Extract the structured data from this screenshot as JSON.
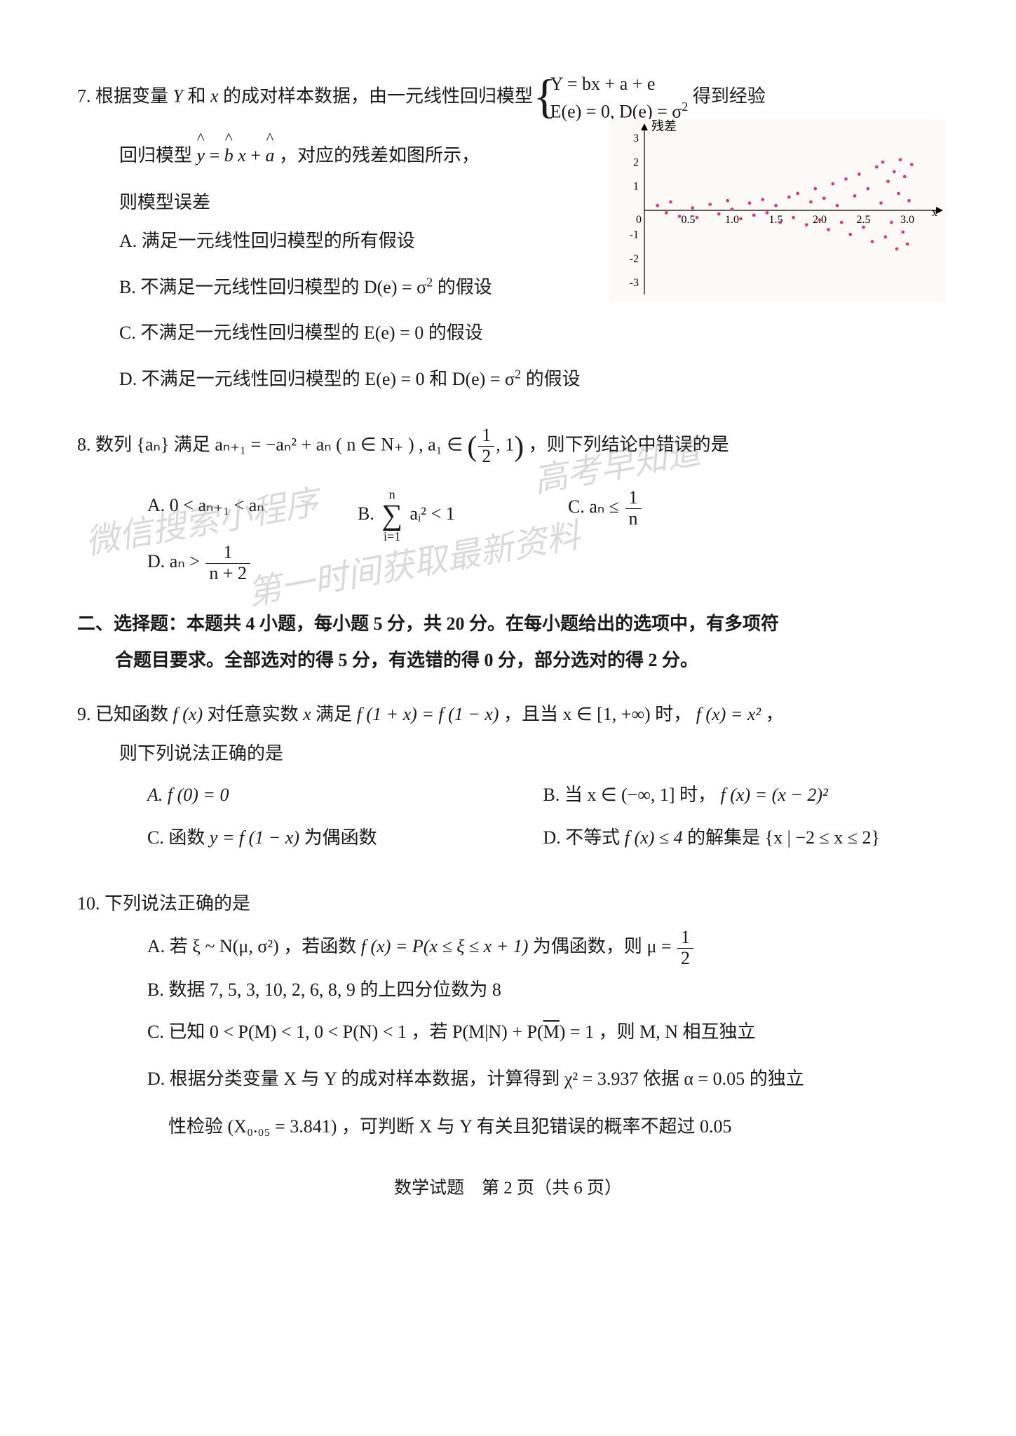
{
  "q7": {
    "num": "7.",
    "stem_a": "根据变量 ",
    "stem_b": " 和 ",
    "stem_c": " 的成对样本数据，由一元线性回归模型 ",
    "stem_d": " 得到经验",
    "sys_row1": "Y = bx + a + e",
    "sys_row2_a": "E(e) = 0, D(e) = σ",
    "stem2_a": "回归模型 ",
    "stem2_b": "，对应的残差如图所示，",
    "stem3": "则模型误差",
    "optA": "A. 满足一元线性回归模型的所有假设",
    "optB_a": "B. 不满足一元线性回归模型的 ",
    "optB_b": " 的假设",
    "optB_mid": "D(e) = σ",
    "optC_a": "C. 不满足一元线性回归模型的 ",
    "optC_b": " 的假设",
    "optC_mid": "E(e) = 0",
    "optD_a": "D. 不满足一元线性回归模型的 ",
    "optD_mid1": "E(e) = 0",
    "optD_and": " 和 ",
    "optD_mid2": "D(e) = σ",
    "optD_b": " 的假设",
    "plot_label": "残差",
    "x_axis_label": "x"
  },
  "q8": {
    "num": "8.",
    "stem_a": "数列 ",
    "stem_b": " 满足 ",
    "stem_c": "，则下列结论中错误的是",
    "seq_set": "{aₙ}",
    "rec": "aₙ₊₁ = −aₙ² + aₙ ( n ∈ N₊ ) , a₁ ∈",
    "interval_l": "1",
    "interval_l_den": "2",
    "interval_r": ", 1",
    "optA": "A. 0 < aₙ₊₁ < aₙ",
    "optB_pre": "B.",
    "optB_sum_top": "n",
    "optB_sum_bot": "i=1",
    "optB_body": "aᵢ² < 1",
    "optC_a": "C. aₙ ≤",
    "optC_num": "1",
    "optC_den": "n",
    "optD_a": "D. aₙ >",
    "optD_num": "1",
    "optD_den": "n + 2"
  },
  "section2": {
    "line1": "二、选择题：本题共 4 小题，每小题 5 分，共 20 分。在每小题给出的选项中，有多项符",
    "line2": "合题目要求。全部选对的得 5 分，有选错的得 0 分，部分选对的得 2 分。"
  },
  "q9": {
    "num": "9.",
    "stem_a": "已知函数 ",
    "stem_b": " 对任意实数 ",
    "stem_c": " 满足 ",
    "stem_d": "，且当 ",
    "stem_e": " 时，",
    "stem_f": "，",
    "fx": "f (x)",
    "xvar": "x",
    "eq1": "f (1 + x) = f (1 − x)",
    "dom1": "x ∈ [1, +∞)",
    "val1": "f (x) = x²",
    "stem2": "则下列说法正确的是",
    "optA": "A. f (0) = 0",
    "optB_a": "B. 当 ",
    "optB_dom": "x ∈ (−∞, 1]",
    "optB_mid": " 时，",
    "optB_val": "f (x) = (x − 2)²",
    "optC_a": "C. 函数 ",
    "optC_fn": "y = f (1 − x)",
    "optC_b": " 为偶函数",
    "optD_a": "D. 不等式 ",
    "optD_ineq": "f (x) ≤ 4",
    "optD_mid": " 的解集是 ",
    "optD_set": "{x | −2 ≤ x ≤ 2}"
  },
  "q10": {
    "num": "10.",
    "stem": "下列说法正确的是",
    "optA_a": "A. 若 ",
    "optA_dist": "ξ ~ N(μ, σ²)",
    "optA_b": "，若函数 ",
    "optA_fn": "f (x) = P(x ≤ ξ ≤ x + 1)",
    "optA_c": " 为偶函数，则 ",
    "optA_mu": "μ =",
    "optA_num": "1",
    "optA_den": "2",
    "optB": "B. 数据 7, 5, 3, 10, 2, 6, 8, 9 的上四分位数为 8",
    "optC_a": "C. 已知 ",
    "optC_p1": "0 < P(M) < 1,  0 < P(N) < 1",
    "optC_mid": "，若 ",
    "optC_eq_a": "P(M|N) + P(",
    "optC_eq_bar": "M",
    "optC_eq_b": ") = 1",
    "optC_tail": "，则 M, N 相互独立",
    "optD_a": "D. 根据分类变量 X 与 Y 的成对样本数据，计算得到 ",
    "optD_chi": "χ² = 3.937",
    "optD_mid": " 依据 ",
    "optD_alpha": "α = 0.05",
    "optD_tail1": " 的独立",
    "optD_line2_a": "性检验 ",
    "optD_crit": "(X₀.₀₅ = 3.841)",
    "optD_line2_b": "，可判断 X 与 Y 有关且犯错误的概率不超过 0.05"
  },
  "footer": "数学试题　第 2 页（共 6 页）",
  "watermarks": {
    "w1": "微信搜索小程序",
    "w2": "高考早知道",
    "w3": "第一时间获取最新资料"
  },
  "residual_plot": {
    "type": "scatter",
    "background_color": "#fbfaf6",
    "point_color": "#d63b8c",
    "point_radius": 2.4,
    "axis_color": "#000000",
    "xlim": [
      0,
      3.2
    ],
    "ylim": [
      -3.2,
      3.2
    ],
    "xticks": [
      0,
      0.5,
      1.0,
      1.5,
      2.0,
      2.5,
      3.0
    ],
    "xtick_labels": [
      "0",
      "0.5",
      "1.0",
      "1.5",
      "2.0",
      "2.5",
      "3.0"
    ],
    "yticks": [
      -3,
      -2,
      -1,
      0,
      1,
      2,
      3
    ],
    "ytick_labels": [
      "-3",
      "-2",
      "-1",
      "0",
      "1",
      "2",
      "3"
    ],
    "label_fontsize": 16,
    "points": [
      [
        0.15,
        0.2
      ],
      [
        0.25,
        -0.1
      ],
      [
        0.3,
        0.35
      ],
      [
        0.4,
        -0.25
      ],
      [
        0.55,
        0.1
      ],
      [
        0.6,
        -0.3
      ],
      [
        0.75,
        0.25
      ],
      [
        0.85,
        -0.15
      ],
      [
        0.95,
        0.4
      ],
      [
        1.0,
        0.05
      ],
      [
        1.1,
        -0.35
      ],
      [
        1.2,
        0.3
      ],
      [
        1.25,
        -0.2
      ],
      [
        1.35,
        0.45
      ],
      [
        1.4,
        -0.1
      ],
      [
        1.5,
        0.2
      ],
      [
        1.55,
        -0.5
      ],
      [
        1.65,
        0.55
      ],
      [
        1.7,
        -0.3
      ],
      [
        1.75,
        0.7
      ],
      [
        1.85,
        -0.6
      ],
      [
        1.9,
        0.35
      ],
      [
        1.95,
        0.9
      ],
      [
        2.0,
        -0.4
      ],
      [
        2.05,
        0.5
      ],
      [
        2.1,
        -0.8
      ],
      [
        2.15,
        1.1
      ],
      [
        2.2,
        0.2
      ],
      [
        2.25,
        -0.5
      ],
      [
        2.3,
        1.3
      ],
      [
        2.35,
        -1.0
      ],
      [
        2.4,
        0.6
      ],
      [
        2.45,
        1.5
      ],
      [
        2.5,
        -0.7
      ],
      [
        2.55,
        0.9
      ],
      [
        2.6,
        -1.3
      ],
      [
        2.65,
        1.8
      ],
      [
        2.7,
        0.3
      ],
      [
        2.72,
        2.0
      ],
      [
        2.75,
        -1.1
      ],
      [
        2.78,
        1.2
      ],
      [
        2.82,
        -0.5
      ],
      [
        2.85,
        1.6
      ],
      [
        2.88,
        -1.6
      ],
      [
        2.9,
        0.7
      ],
      [
        2.92,
        2.1
      ],
      [
        2.95,
        -0.9
      ],
      [
        2.97,
        1.4
      ],
      [
        3.0,
        -1.4
      ],
      [
        3.02,
        0.4
      ],
      [
        3.05,
        1.9
      ]
    ]
  }
}
